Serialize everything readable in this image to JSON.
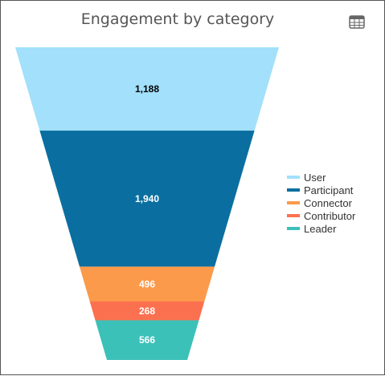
{
  "chart_data": {
    "type": "funnel",
    "title": "Engagement by category",
    "stages": [
      "User",
      "Participant",
      "Connector",
      "Contributor",
      "Leader"
    ],
    "values": [
      1188,
      1940,
      496,
      268,
      566
    ],
    "value_labels": [
      "1,188",
      "1,940",
      "496",
      "268",
      "566"
    ],
    "colors": [
      "#a2e0fb",
      "#0a6fa0",
      "#fb9a4b",
      "#fb7150",
      "#3cc1b9"
    ],
    "label_colors": [
      "#000000",
      "#ffffff",
      "#ffffff",
      "#ffffff",
      "#ffffff"
    ],
    "legend": {
      "position": "right",
      "items": [
        {
          "label": "User",
          "color": "#a2e0fb"
        },
        {
          "label": "Participant",
          "color": "#0a6fa0"
        },
        {
          "label": "Connector",
          "color": "#fb9a4b"
        },
        {
          "label": "Contributor",
          "color": "#fb7150"
        },
        {
          "label": "Leader",
          "color": "#3cc1b9"
        }
      ]
    }
  },
  "toolbar": {
    "table_icon": "table-icon"
  }
}
